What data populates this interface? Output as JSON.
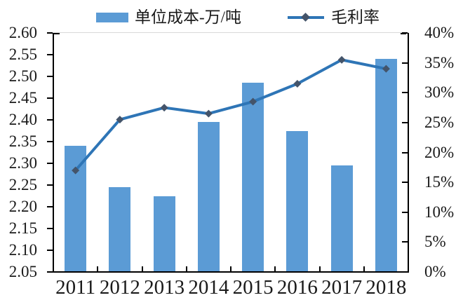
{
  "legend": {
    "bar_label": "单位成本-万/吨",
    "line_label": "毛利率"
  },
  "colors": {
    "bar_fill": "#5B9BD5",
    "line_stroke": "#2E75B6",
    "marker_fill": "#44546A",
    "axis_line": "#000000",
    "plot_top_border": "#D9D9D9"
  },
  "chart_data": {
    "type": "bar+line combo, dual axis",
    "title": "",
    "categories": [
      "2011",
      "2012",
      "2013",
      "2014",
      "2015",
      "2016",
      "2017",
      "2018"
    ],
    "series": [
      {
        "name": "单位成本-万/吨",
        "type": "bar",
        "axis": "left",
        "values": [
          2.34,
          2.245,
          2.225,
          2.395,
          2.485,
          2.375,
          2.295,
          2.54
        ]
      },
      {
        "name": "毛利率",
        "type": "line",
        "axis": "right",
        "unit": "%",
        "values": [
          17,
          25.5,
          27.5,
          26.5,
          28.5,
          31.5,
          35.5,
          34
        ]
      }
    ],
    "left_axis": {
      "min": 2.05,
      "max": 2.6,
      "step": 0.05,
      "tick_labels": [
        "2.60",
        "2.55",
        "2.50",
        "2.45",
        "2.40",
        "2.35",
        "2.30",
        "2.25",
        "2.20",
        "2.15",
        "2.10",
        "2.05"
      ]
    },
    "right_axis": {
      "min": 0,
      "max": 40,
      "step": 5,
      "tick_labels": [
        "40%",
        "35%",
        "30%",
        "25%",
        "20%",
        "15%",
        "10%",
        "5%",
        "0%"
      ]
    },
    "grid": false,
    "legend_position": "top"
  }
}
